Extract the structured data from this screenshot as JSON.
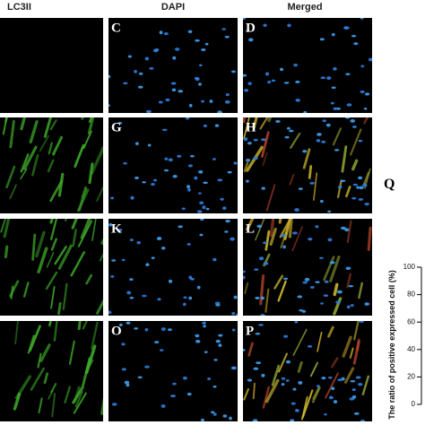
{
  "column_headers": [
    "LC3II",
    "DAPI",
    "Merged"
  ],
  "panel_labels": [
    "C",
    "D",
    "G",
    "H",
    "K",
    "L",
    "O",
    "P"
  ],
  "chart_label": "Q",
  "chart_axis": {
    "ylabel": "The ratio of positive expressed cell (%)",
    "ylim": [
      0,
      100
    ],
    "yticks": [
      0,
      20,
      40,
      60,
      80,
      100
    ]
  }
}
